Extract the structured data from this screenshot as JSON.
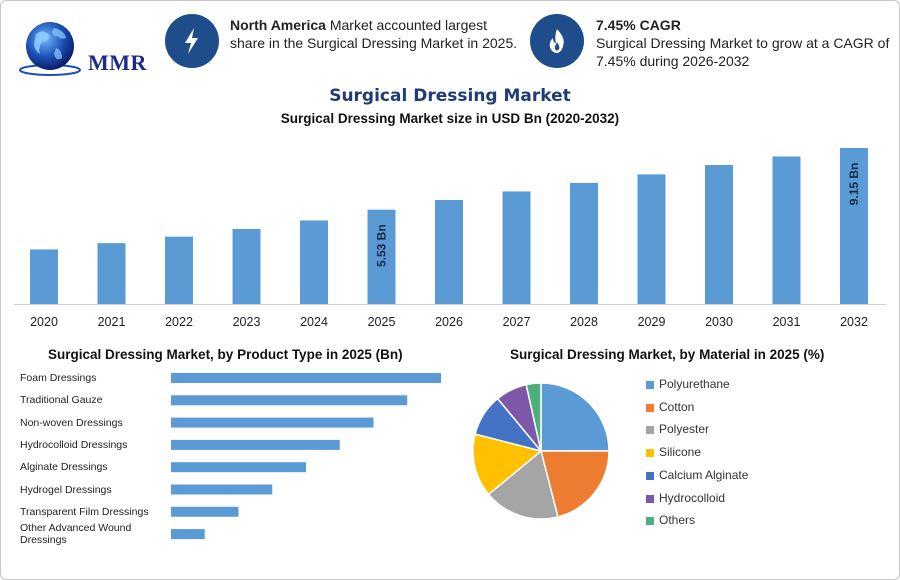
{
  "header": {
    "logo_text": "MMR",
    "info_left": {
      "icon": "lightning-bolt-icon",
      "bold": "North America",
      "text": " Market accounted largest share in the Surgical Dressing Market in 2025."
    },
    "info_right": {
      "icon": "flame-icon",
      "bold": "7.45% CAGR",
      "text": "Surgical Dressing Market to grow at a CAGR of 7.45% during 2026-2032"
    }
  },
  "main_title": "Surgical Dressing Market",
  "sub_title": "Surgical Dressing Market size in USD Bn (2020-2032)",
  "bar_title": "Surgical Dressing Market, by Product Type in 2025 (Bn)",
  "pie_title": "Surgical Dressing Market, by Material in 2025 (%)",
  "colors": {
    "bar": "#5b9bd5",
    "title": "#1f3c78",
    "icon_bg": "#1f4d8c"
  },
  "chart_data": [
    {
      "type": "bar",
      "title": "Surgical Dressing Market size in USD Bn (2020-2032)",
      "categories": [
        "2020",
        "2021",
        "2022",
        "2023",
        "2024",
        "2025",
        "2026",
        "2027",
        "2028",
        "2029",
        "2030",
        "2031",
        "2032"
      ],
      "values": [
        3.2,
        3.57,
        3.95,
        4.4,
        4.9,
        5.53,
        6.1,
        6.6,
        7.1,
        7.6,
        8.15,
        8.65,
        9.15
      ],
      "data_labels": {
        "2025": "5.53 Bn",
        "2032": "9.15 Bn"
      },
      "ylim": [
        0,
        9.5
      ],
      "grid": false
    },
    {
      "type": "bar",
      "orientation": "horizontal",
      "title": "Surgical Dressing Market, by Product Type in 2025 (Bn)",
      "categories": [
        "Foam Dressings",
        "Traditional Gauze",
        "Non-woven Dressings",
        "Hydrocolloid Dressings",
        "Alginate Dressings",
        "Hydrogel Dressings",
        "Transparent Film Dressings",
        "Other Advanced Wound Dressings"
      ],
      "values": [
        1.2,
        1.05,
        0.9,
        0.75,
        0.6,
        0.45,
        0.3,
        0.15
      ],
      "xlim": [
        0,
        1.2
      ]
    },
    {
      "type": "pie",
      "title": "Surgical Dressing Market, by Material in 2025 (%)",
      "categories": [
        "Polyurethane",
        "Cotton",
        "Polyester",
        "Silicone",
        "Calcium Alginate",
        "Hydrocolloid",
        "Others"
      ],
      "values": [
        25,
        21,
        18,
        15,
        10,
        7.5,
        3.5
      ],
      "colors": [
        "#5b9bd5",
        "#ed7d31",
        "#a5a5a5",
        "#ffc000",
        "#4472c4",
        "#7e57a8",
        "#4caf7d"
      ],
      "legend": "right"
    }
  ]
}
